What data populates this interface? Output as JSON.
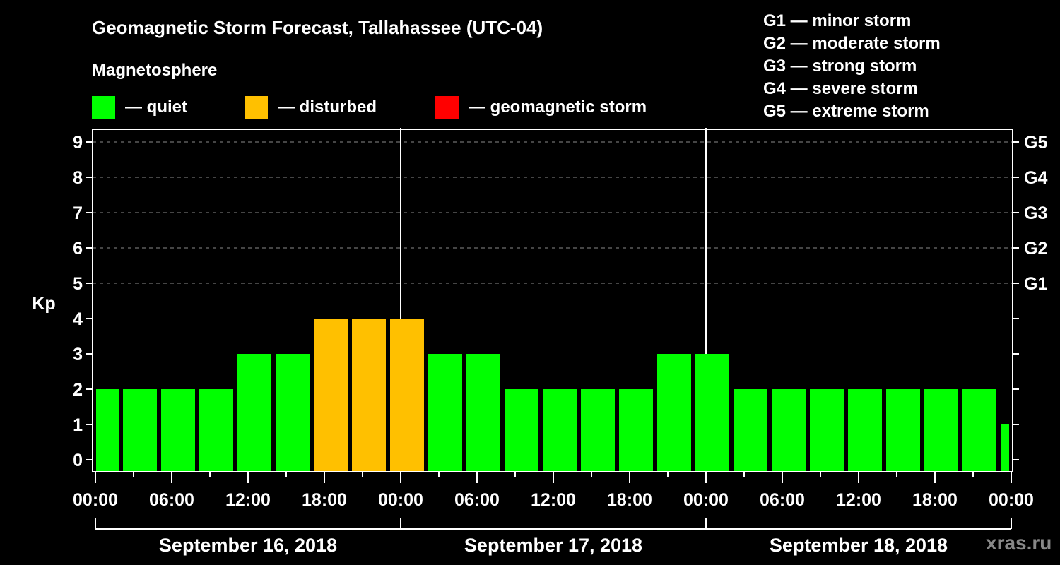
{
  "chart_data": {
    "type": "bar",
    "title": "Geomagnetic Storm Forecast, Tallahassee (UTC-04)",
    "ylabel": "Kp",
    "xlabel": "",
    "ylim": [
      0,
      9
    ],
    "yticks": [
      "0",
      "1",
      "2",
      "3",
      "4",
      "5",
      "6",
      "7",
      "8",
      "9"
    ],
    "right_ticks": [
      {
        "kp": 5,
        "label": "G1"
      },
      {
        "kp": 6,
        "label": "G2"
      },
      {
        "kp": 7,
        "label": "G3"
      },
      {
        "kp": 8,
        "label": "G4"
      },
      {
        "kp": 9,
        "label": "G5"
      }
    ],
    "grid": "dashed horizontal at Kp 5-9",
    "xtick_labels": [
      "00:00",
      "06:00",
      "12:00",
      "18:00",
      "00:00",
      "06:00",
      "12:00",
      "18:00",
      "00:00",
      "06:00",
      "12:00",
      "18:00",
      "00:00"
    ],
    "xtick_hours": [
      0,
      6,
      12,
      18,
      24,
      30,
      36,
      42,
      48,
      54,
      60,
      66,
      72
    ],
    "x_range_hours": [
      0,
      72
    ],
    "bar_interval_hours": 3,
    "bar_offset_hours": -1,
    "days": [
      {
        "label": "September 16, 2018",
        "start_hour": 0,
        "end_hour": 24
      },
      {
        "label": "September 17, 2018",
        "start_hour": 24,
        "end_hour": 48
      },
      {
        "label": "September 18, 2018",
        "start_hour": 48,
        "end_hour": 72
      }
    ],
    "values": [
      2,
      2,
      2,
      2,
      3,
      3,
      4,
      4,
      4,
      3,
      3,
      2,
      2,
      2,
      2,
      3,
      3,
      2,
      2,
      2,
      2,
      2,
      2,
      2,
      1
    ],
    "categories": [
      "quiet",
      "quiet",
      "quiet",
      "quiet",
      "quiet",
      "quiet",
      "disturbed",
      "disturbed",
      "disturbed",
      "quiet",
      "quiet",
      "quiet",
      "quiet",
      "quiet",
      "quiet",
      "quiet",
      "quiet",
      "quiet",
      "quiet",
      "quiet",
      "quiet",
      "quiet",
      "quiet",
      "quiet",
      "quiet"
    ]
  },
  "legend": {
    "heading": "Magnetosphere",
    "items": [
      {
        "key": "quiet",
        "label": "— quiet",
        "color": "#00ff00"
      },
      {
        "key": "disturbed",
        "label": "— disturbed",
        "color": "#ffc000"
      },
      {
        "key": "storm",
        "label": "— geomagnetic storm",
        "color": "#ff0000"
      }
    ]
  },
  "storm_scale": [
    "G1 — minor storm",
    "G2 — moderate storm",
    "G3 — strong storm",
    "G4 — severe storm",
    "G5 — extreme storm"
  ],
  "watermark": "xras.ru"
}
